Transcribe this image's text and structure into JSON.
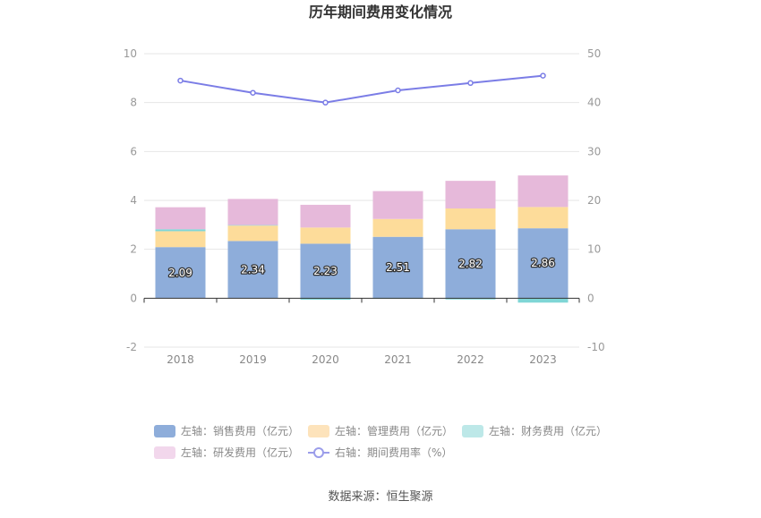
{
  "chart_data": {
    "type": "bar",
    "title": "历年期间费用变化情况",
    "categories": [
      "2018",
      "2019",
      "2020",
      "2021",
      "2022",
      "2023"
    ],
    "stacked": true,
    "left_axis": {
      "min": -2,
      "max": 10,
      "ticks": [
        "-2",
        "0",
        "2",
        "4",
        "6",
        "8",
        "10"
      ]
    },
    "right_axis": {
      "min": -10,
      "max": 50,
      "ticks": [
        "-10",
        "0",
        "10",
        "20",
        "30",
        "40",
        "50"
      ]
    },
    "series": [
      {
        "name": "左轴：销售费用（亿元）",
        "axis": "left",
        "kind": "bar",
        "color": "#8eadda",
        "values": [
          2.09,
          2.34,
          2.23,
          2.51,
          2.82,
          2.86
        ],
        "labels": [
          "2.09",
          "2.34",
          "2.23",
          "2.51",
          "2.82",
          "2.86"
        ]
      },
      {
        "name": "左轴：管理费用（亿元）",
        "axis": "left",
        "kind": "bar",
        "color": "#fddc9a",
        "values": [
          0.65,
          0.63,
          0.66,
          0.73,
          0.85,
          0.87
        ]
      },
      {
        "name": "左轴：财务费用（亿元）",
        "axis": "left",
        "kind": "bar",
        "color": "#7fd6d6",
        "values": [
          0.08,
          0.02,
          -0.06,
          -0.02,
          -0.05,
          -0.18
        ]
      },
      {
        "name": "左轴：研发费用（亿元）",
        "axis": "left",
        "kind": "bar",
        "color": "#e6b9da",
        "values": [
          0.9,
          1.07,
          0.93,
          1.14,
          1.13,
          1.29
        ]
      },
      {
        "name": "右轴：期间费用率（%）",
        "axis": "right",
        "kind": "line",
        "color": "#7b7de6",
        "values": [
          44.5,
          42.0,
          40.0,
          42.5,
          44.0,
          45.5
        ]
      }
    ],
    "legend_colors": [
      "#8eadda",
      "#fde3bb",
      "#bde8e8",
      "#f2d7ec",
      "#9b9dea"
    ],
    "source": "数据来源：恒生聚源"
  }
}
